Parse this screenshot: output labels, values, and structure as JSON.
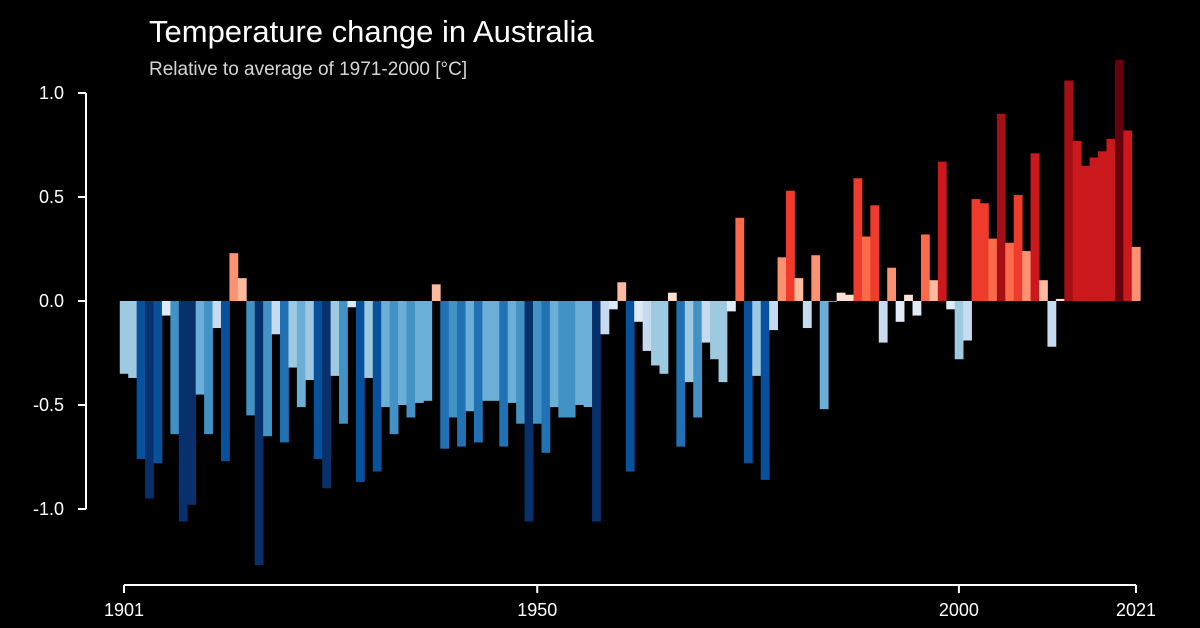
{
  "chart_data": {
    "type": "bar",
    "title": "Temperature change in Australia",
    "subtitle": "Relative to average of 1971-2000  [°C]",
    "xlabel": "",
    "ylabel": "",
    "ylim": [
      -1.27,
      1.16
    ],
    "xlim": [
      1901,
      2021
    ],
    "y_ticks": [
      1.0,
      0.5,
      0.0,
      -0.5,
      -1.0
    ],
    "y_tick_labels": [
      "1.0",
      "0.5",
      "0.0",
      "-0.5",
      "-1.0"
    ],
    "x_ticks": [
      1901,
      1950,
      2000,
      2021
    ],
    "x_tick_labels": [
      "1901",
      "1950",
      "2000",
      "2021"
    ],
    "grid": false,
    "legend": "none",
    "color_scale": {
      "negative": [
        "#deebf7",
        "#c6dbef",
        "#9ecae1",
        "#6baed6",
        "#4292c6",
        "#2171b5",
        "#08519c",
        "#08306b"
      ],
      "positive": [
        "#fee0d2",
        "#fcbba1",
        "#fc9272",
        "#fb6a4a",
        "#ef3b2c",
        "#cb181d",
        "#a50f15",
        "#67000d"
      ]
    },
    "x": [
      1901,
      1902,
      1903,
      1904,
      1905,
      1906,
      1907,
      1908,
      1909,
      1910,
      1911,
      1912,
      1913,
      1914,
      1915,
      1916,
      1917,
      1918,
      1919,
      1920,
      1921,
      1922,
      1923,
      1924,
      1925,
      1926,
      1927,
      1928,
      1929,
      1930,
      1931,
      1932,
      1933,
      1934,
      1935,
      1936,
      1937,
      1938,
      1939,
      1940,
      1941,
      1942,
      1943,
      1944,
      1945,
      1946,
      1947,
      1948,
      1949,
      1950,
      1951,
      1952,
      1953,
      1954,
      1955,
      1956,
      1957,
      1958,
      1959,
      1960,
      1961,
      1962,
      1963,
      1964,
      1965,
      1966,
      1967,
      1968,
      1969,
      1970,
      1971,
      1972,
      1973,
      1974,
      1975,
      1976,
      1977,
      1978,
      1979,
      1980,
      1981,
      1982,
      1983,
      1984,
      1985,
      1986,
      1987,
      1988,
      1989,
      1990,
      1991,
      1992,
      1993,
      1994,
      1995,
      1996,
      1997,
      1998,
      1999,
      2000,
      2001,
      2002,
      2003,
      2004,
      2005,
      2006,
      2007,
      2008,
      2009,
      2010,
      2011,
      2012,
      2013,
      2014,
      2015,
      2016,
      2017,
      2018,
      2019,
      2020,
      2021
    ],
    "values": [
      -0.35,
      -0.37,
      -0.76,
      -0.95,
      -0.78,
      -0.07,
      -0.64,
      -1.06,
      -0.98,
      -0.45,
      -0.64,
      -0.13,
      -0.77,
      0.23,
      0.11,
      -0.55,
      -1.27,
      -0.65,
      -0.16,
      -0.68,
      -0.32,
      -0.51,
      -0.38,
      -0.76,
      -0.9,
      -0.36,
      -0.59,
      -0.03,
      -0.87,
      -0.37,
      -0.82,
      -0.51,
      -0.64,
      -0.5,
      -0.56,
      -0.49,
      -0.48,
      0.08,
      -0.71,
      -0.56,
      -0.7,
      -0.53,
      -0.68,
      -0.48,
      -0.48,
      -0.7,
      -0.49,
      -0.59,
      -1.06,
      -0.59,
      -0.73,
      -0.51,
      -0.56,
      -0.56,
      -0.5,
      -0.51,
      -1.06,
      -0.16,
      -0.04,
      0.09,
      -0.82,
      -0.1,
      -0.24,
      -0.31,
      -0.35,
      0.04,
      -0.7,
      -0.39,
      -0.56,
      -0.2,
      -0.28,
      -0.39,
      -0.05,
      0.4,
      -0.78,
      -0.36,
      -0.86,
      -0.14,
      0.21,
      0.53,
      0.11,
      -0.13,
      0.22,
      -0.52,
      0.0,
      0.04,
      0.03,
      0.59,
      0.31,
      0.46,
      -0.2,
      0.16,
      -0.1,
      0.03,
      -0.07,
      0.32,
      0.1,
      0.67,
      -0.04,
      -0.28,
      -0.19,
      0.49,
      0.47,
      0.3,
      0.9,
      0.28,
      0.51,
      0.24,
      0.71,
      0.1,
      -0.22,
      0.01,
      1.06,
      0.77,
      0.65,
      0.69,
      0.72,
      0.78,
      1.16,
      0.82,
      0.26
    ]
  }
}
